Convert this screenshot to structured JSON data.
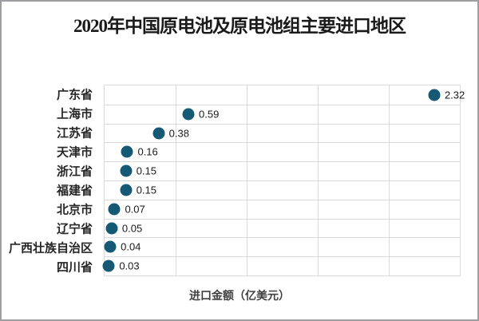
{
  "frame": {
    "background": "#ffffff",
    "border_color": "#9e9ea2"
  },
  "chart_data": {
    "type": "scatter",
    "orientation": "horizontal",
    "title": "2020年中国原电池及原电池组主要进口地区",
    "categories": [
      "广东省",
      "上海市",
      "江苏省",
      "天津市",
      "浙江省",
      "福建省",
      "北京市",
      "辽宁省",
      "广西壮族自治区",
      "四川省"
    ],
    "values": [
      2.32,
      0.59,
      0.38,
      0.16,
      0.15,
      0.15,
      0.07,
      0.05,
      0.04,
      0.03
    ],
    "value_labels": [
      "2.32",
      "0.59",
      "0.38",
      "0.16",
      "0.15",
      "0.15",
      "0.07",
      "0.05",
      "0.04",
      "0.03"
    ],
    "xlabel": "进口金额（亿美元）",
    "ylabel": "",
    "xlim": [
      0,
      2.5
    ],
    "x_gridline_interval": 0.5,
    "grid": true,
    "legend": "none",
    "marker_color": "#155975",
    "gridline_color": "#d9d9d9"
  }
}
